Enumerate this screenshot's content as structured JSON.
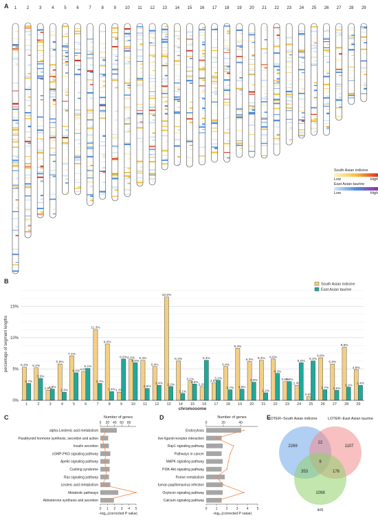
{
  "panels": {
    "a": "A",
    "b": "B",
    "c": "C",
    "d": "D",
    "e": "E"
  },
  "ideogram": {
    "chromosomes": [
      "1",
      "2",
      "3",
      "4",
      "5",
      "6",
      "7",
      "8",
      "9",
      "10",
      "11",
      "12",
      "13",
      "14",
      "15",
      "16",
      "17",
      "18",
      "19",
      "20",
      "21",
      "22",
      "23",
      "24",
      "25",
      "26",
      "27",
      "28",
      "29"
    ],
    "legend": {
      "south_title": "South Asian indicine",
      "east_title": "East Asian taurine",
      "low": "Low",
      "high": "High",
      "south_colors": [
        "#fdf3c8",
        "#f5c242",
        "#e0301e"
      ],
      "east_colors": [
        "#d6e6f7",
        "#4f8fe0",
        "#9a2fa6"
      ]
    }
  },
  "chart_data": [
    {
      "type": "bar",
      "ylabel": "percentage of segment lengths",
      "xlabel": "chromosome",
      "yticks": [
        "0%",
        "5%",
        "10%",
        "15%"
      ],
      "ylim": [
        0,
        18
      ],
      "categories": [
        "1",
        "2",
        "3",
        "4",
        "5",
        "6",
        "7",
        "8",
        "9",
        "10",
        "11",
        "12",
        "13",
        "14",
        "15",
        "16",
        "17",
        "18",
        "19",
        "20",
        "21",
        "22",
        "23",
        "24",
        "25",
        "26",
        "27",
        "28",
        "29"
      ],
      "series": [
        {
          "name": "South Asian indicine",
          "color": "#f3cf85",
          "values": [
            5.3,
            5.2,
            1.6,
            5.8,
            7.1,
            4.6,
            11.3,
            9.0,
            1.3,
            6.5,
            6.4,
            5.4,
            16.5,
            6.3,
            3.1,
            2.2,
            2.8,
            5.4,
            8.3,
            6.2,
            6.4,
            6.6,
            3.0,
            2.4,
            0.6,
            6.8,
            5.8,
            8.5,
            4.9
          ],
          "labels": [
            "5.3%",
            "5.2%",
            "1.6%",
            "5.8%",
            "7.1%",
            "4.6%",
            "11.3%",
            "9.0%",
            "1.3%",
            "6.5%",
            "6.4%",
            "5.4%",
            "16.5%",
            "6.3%",
            "3.1%",
            "2.2%",
            "2.8%",
            "5.4%",
            "8.3%",
            "6.2%",
            "6.4%",
            "6.6%",
            "3.0%",
            "2.4%",
            "0.6%",
            "6.8%",
            "5.8%",
            "8.5%",
            "4.9%"
          ]
        },
        {
          "name": "East Asian taurine",
          "color": "#1fa99a",
          "values": [
            2.7,
            3.5,
            1.8,
            1.3,
            4.4,
            5.1,
            2.7,
            1.4,
            6.6,
            6.0,
            1.9,
            2.4,
            2.2,
            1.1,
            2.6,
            6.4,
            3.2,
            1.7,
            1.8,
            2.9,
            1.2,
            4.3,
            3.0,
            6.0,
            6.3,
            1.7,
            1.6,
            2.1,
            2.4
          ],
          "labels": [
            "2.7%",
            "3.5%",
            "1.8%",
            "1.3%",
            "4.4%",
            "5.1%",
            "2.7%",
            "1.4%",
            "6.6%",
            "6.0%",
            "1.9%",
            "2.4%",
            "2.2%",
            "1.1%",
            "2.6%",
            "6.4%",
            "3.2%",
            "1.7%",
            "1.8%",
            "2.9%",
            "1.2%",
            "4.3%",
            "3.0%",
            "6.0%",
            "6.3%",
            "1.7%",
            "1.6%",
            "2.1%",
            "2.4%"
          ]
        }
      ]
    },
    {
      "type": "bar",
      "orientation": "horizontal",
      "categories": [
        "alpha-Linolenic acid metabolism",
        "Parathyroid hormone synthesis, secretion and action",
        "Insulin secretion",
        "cGMP-PKG signaling pathway",
        "Apelin signaling pathway",
        "Cushing syndrome",
        "Ras signaling pathway",
        "Linoleic acid metabolism",
        "Metabolic pathways",
        "Aldosterone synthesis and secretion"
      ],
      "bottom_axis_label": "−log₁₀(corrected P value)",
      "bottom_ticks": [
        "0",
        "1",
        "2",
        "3",
        "4",
        "5"
      ],
      "top_axis_label": "Number of genes",
      "top_ticks": [
        "0",
        "20",
        "40",
        "60",
        "80"
      ],
      "bar_values": [
        2.3,
        1.1,
        1.2,
        1.4,
        1.3,
        1.3,
        1.2,
        1.4,
        2.5,
        1.9
      ],
      "line_values": [
        16,
        6,
        10,
        16,
        12,
        16,
        16,
        6,
        100,
        12
      ],
      "bar_color": "#a6a6a6",
      "line_color": "#f08a4b"
    },
    {
      "type": "bar",
      "orientation": "horizontal",
      "categories": [
        "Endocytosis",
        "Neuroactive ligand-receptor interaction",
        "Rap1 signaling pathway",
        "Pathways in cancer",
        "MAPK signaling pathway",
        "PI3K-Akt signaling pathway",
        "Purine metabolism",
        "Human papillomavirus infection",
        "Oxytocin signaling pathway",
        "Calcium signaling pathway"
      ],
      "bottom_axis_label": "−log₁₀(corrected P value)",
      "bottom_ticks": [
        "0",
        "1",
        "2",
        "3",
        "4",
        "5"
      ],
      "top_axis_label": "Number of genes",
      "top_ticks": [
        "0",
        "20",
        "40"
      ],
      "bar_values": [
        3.4,
        1.5,
        1.6,
        1.5,
        1.6,
        1.5,
        1.8,
        1.6,
        1.6,
        1.5
      ],
      "line_values": [
        44,
        12,
        32,
        28,
        26,
        24,
        12,
        20,
        44,
        14
      ],
      "bar_color": "#a6a6a6",
      "line_color": "#f08a4b"
    }
  ],
  "venn": {
    "set_a": "LOTER−South Asian indicine",
    "set_b": "LOTER−East Asian taurine",
    "set_c": "iHS",
    "only_a": "2269",
    "only_b": "1107",
    "only_c": "1098",
    "ab": "22",
    "ac": "353",
    "bc": "176",
    "abc": "9",
    "colors": [
      "#6fa8ea",
      "#f38c8c",
      "#8fd16c"
    ]
  }
}
